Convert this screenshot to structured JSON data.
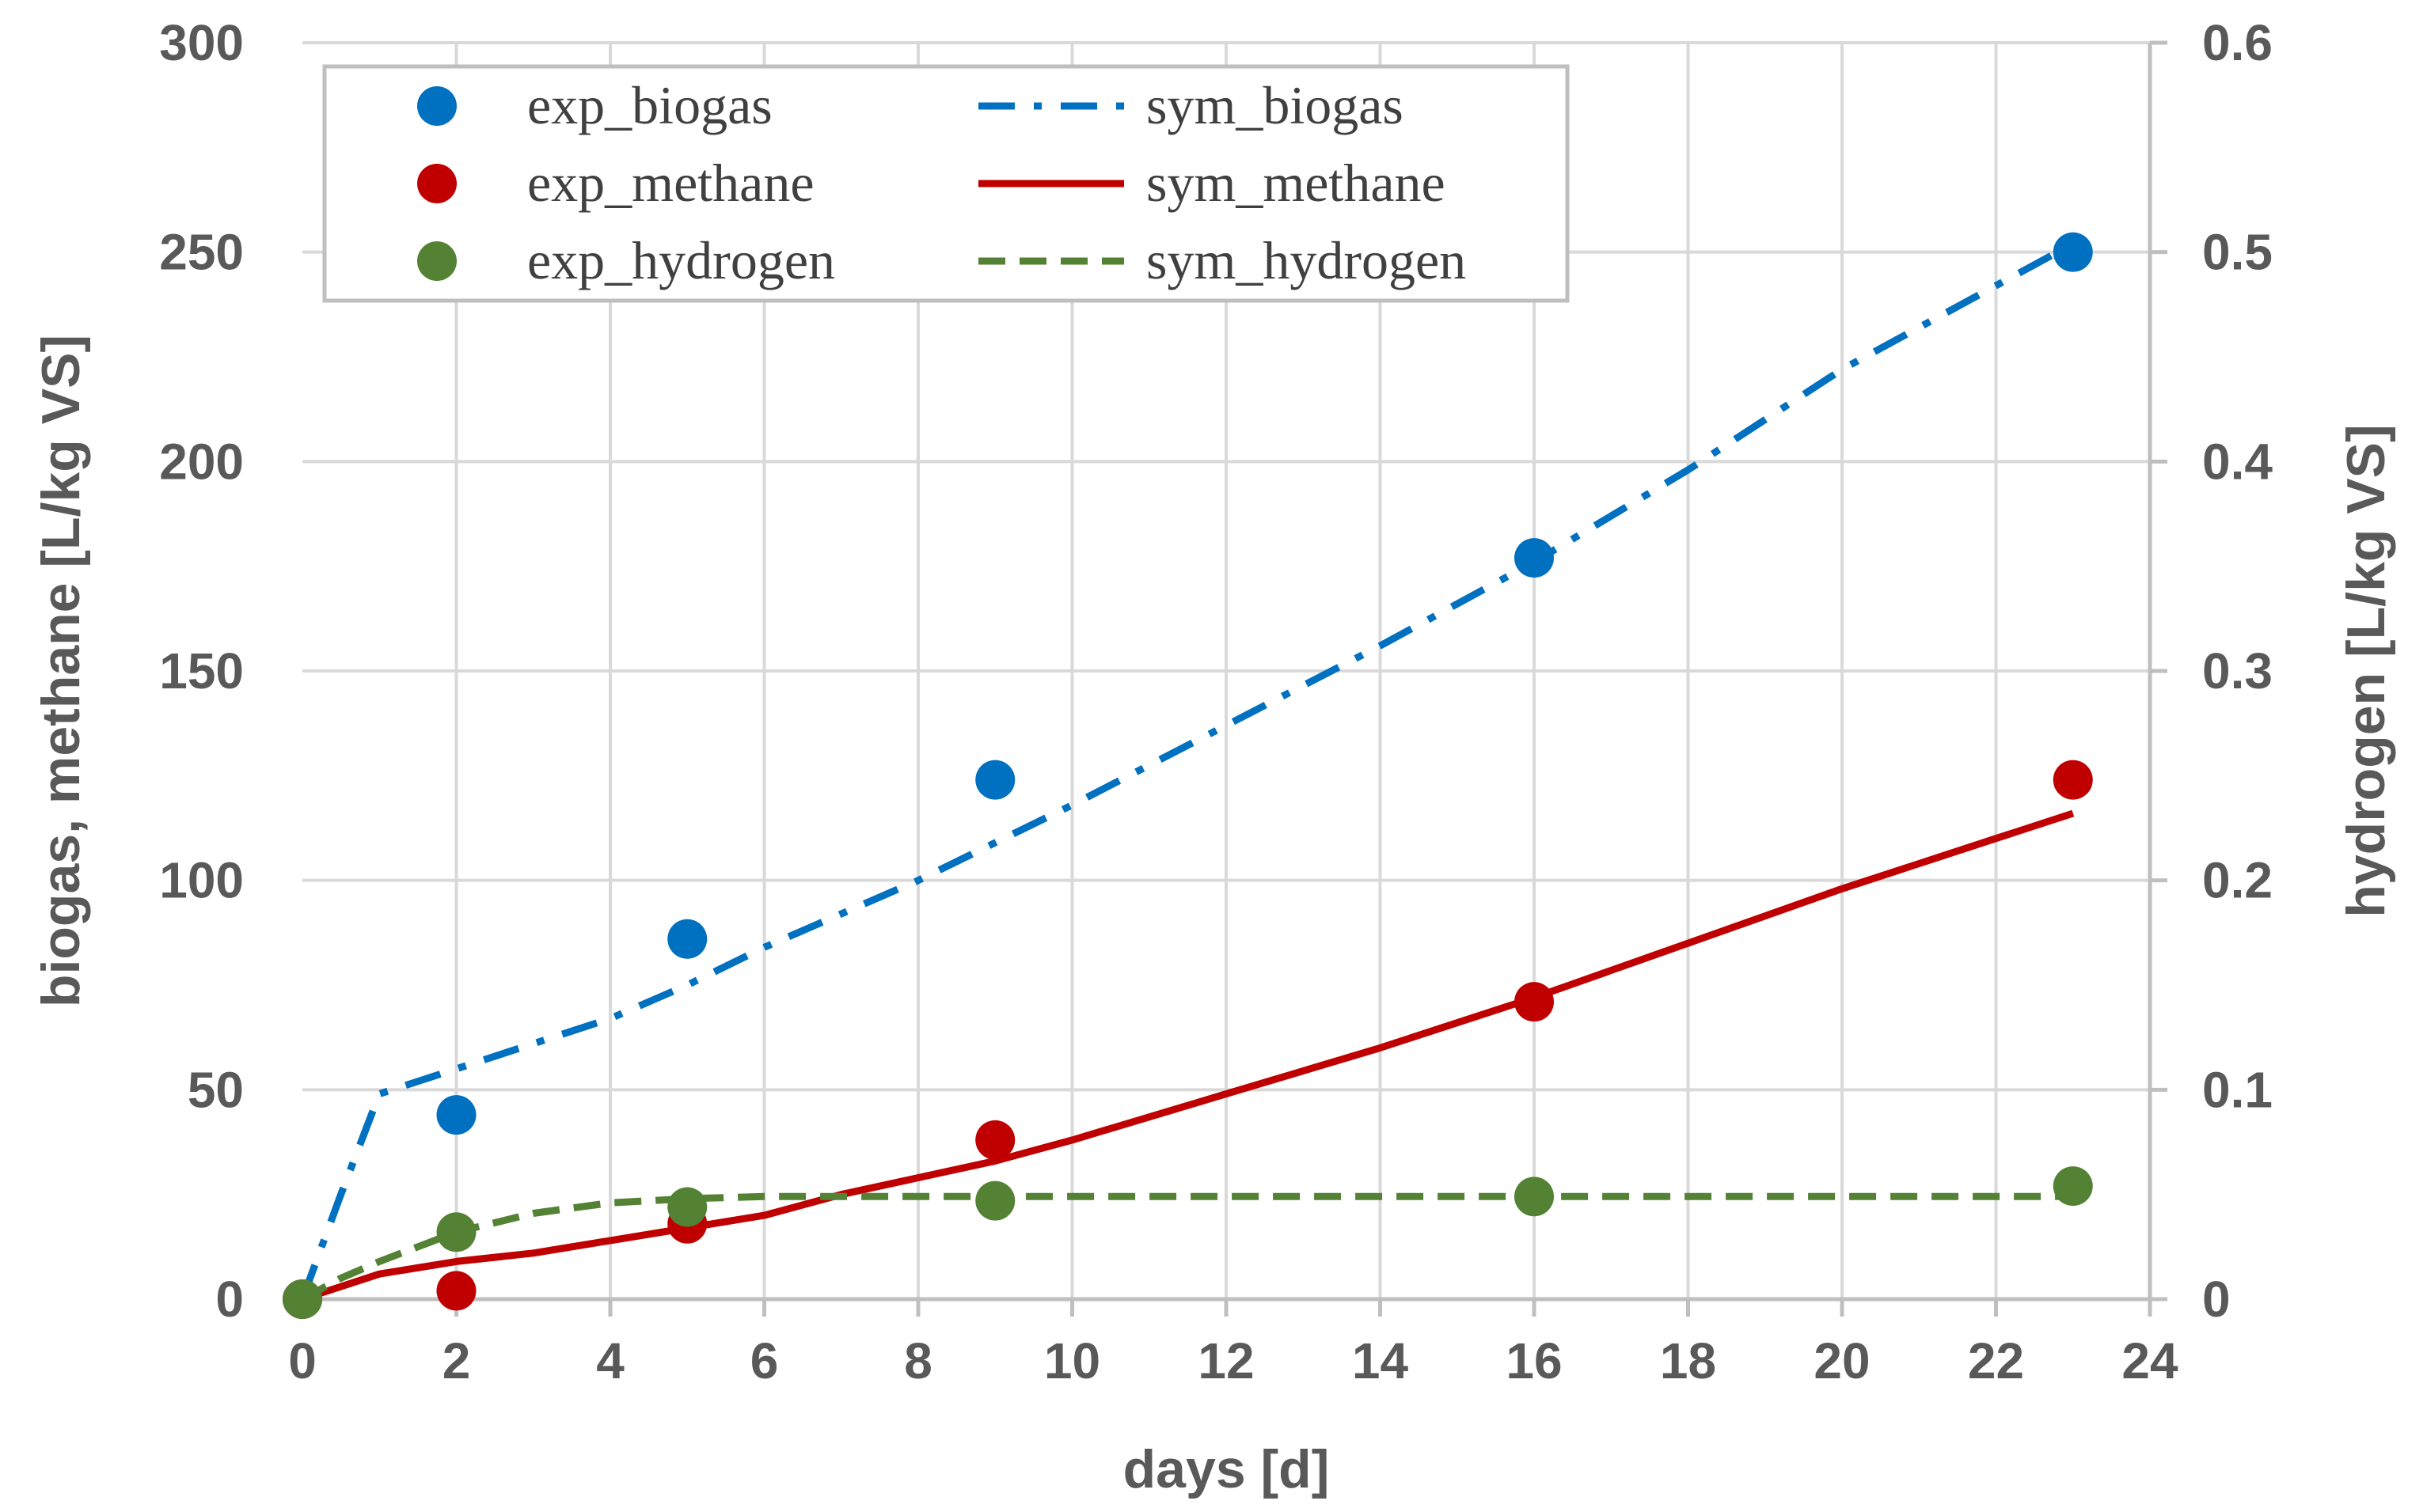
{
  "chart_data": {
    "type": "scatter",
    "xlabel": "days [d]",
    "ylabel": "biogas, methane [L/kg VS]",
    "y2label": "hydrogen [L/kg VS]",
    "xlim": [
      0,
      24
    ],
    "ylim": [
      0,
      300
    ],
    "y2lim": [
      0,
      0.6
    ],
    "x_ticks": [
      0,
      2,
      4,
      6,
      8,
      10,
      12,
      14,
      16,
      18,
      20,
      22,
      24
    ],
    "y_ticks": [
      0,
      50,
      100,
      150,
      200,
      250,
      300
    ],
    "y2_ticks": [
      "0",
      "0.1",
      "0.2",
      "0.3",
      "0.4",
      "0.5",
      "0.6"
    ],
    "grid": true,
    "legend_position": "top-left",
    "series": [
      {
        "name": "exp_biogas",
        "kind": "marker",
        "axis": "left",
        "color": "#0070c0",
        "x": [
          0,
          2,
          5,
          9,
          16,
          23
        ],
        "y": [
          0,
          44,
          86,
          124,
          177,
          250
        ]
      },
      {
        "name": "exp_methane",
        "kind": "marker",
        "axis": "left",
        "color": "#c00000",
        "x": [
          0,
          2,
          5,
          9,
          16,
          23
        ],
        "y": [
          0,
          2,
          18,
          38,
          71,
          124
        ]
      },
      {
        "name": "exp_hydrogen",
        "kind": "marker",
        "axis": "right",
        "color": "#548235",
        "x": [
          0,
          2,
          5,
          9,
          16,
          23
        ],
        "y": [
          0,
          0.032,
          0.044,
          0.047,
          0.049,
          0.054
        ]
      },
      {
        "name": "sym_biogas",
        "kind": "line",
        "dash": "dashdot",
        "axis": "left",
        "color": "#0070c0",
        "x": [
          0,
          0.5,
          1,
          2,
          3,
          4,
          5,
          6,
          7,
          8,
          9,
          10,
          12,
          14,
          16,
          18,
          20,
          22,
          23
        ],
        "y": [
          0,
          25,
          49,
          55,
          61,
          67,
          75,
          84,
          92,
          100,
          109,
          118,
          137,
          156,
          176,
          198,
          222,
          242,
          252
        ]
      },
      {
        "name": "sym_methane",
        "kind": "line",
        "dash": "solid",
        "axis": "left",
        "color": "#c00000",
        "x": [
          0,
          0.5,
          1,
          2,
          3,
          4,
          5,
          6,
          7,
          8,
          9,
          10,
          12,
          14,
          16,
          18,
          20,
          22,
          23
        ],
        "y": [
          0,
          3,
          6,
          9,
          11,
          14,
          17,
          20,
          25,
          29,
          33,
          38,
          49,
          60,
          72,
          85,
          98,
          110,
          116
        ]
      },
      {
        "name": "sym_hydrogen",
        "kind": "line",
        "dash": "dashed",
        "axis": "right",
        "color": "#548235",
        "x": [
          0,
          0.5,
          1,
          2,
          3,
          4,
          5,
          6,
          7,
          9,
          12,
          16,
          20,
          23
        ],
        "y": [
          0,
          0.01,
          0.018,
          0.032,
          0.041,
          0.046,
          0.048,
          0.049,
          0.049,
          0.049,
          0.049,
          0.049,
          0.049,
          0.049
        ]
      }
    ]
  }
}
